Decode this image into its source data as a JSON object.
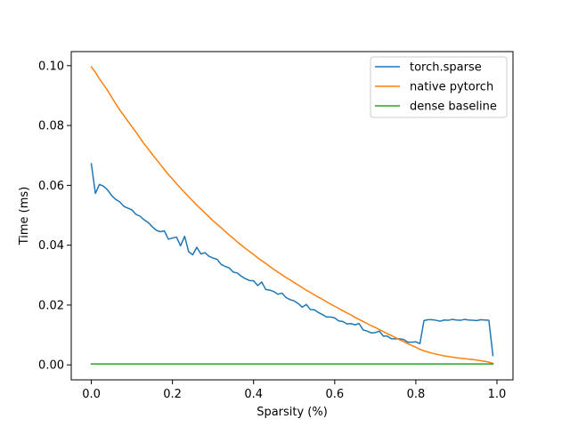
{
  "chart_data": {
    "type": "line",
    "title": "",
    "xlabel": "Sparsity (%)",
    "ylabel": "Time (ms)",
    "xlim": [
      -0.0495,
      1.0395
    ],
    "ylim": [
      -0.005,
      0.1047
    ],
    "xticks": [
      0.0,
      0.2,
      0.4,
      0.6,
      0.8,
      1.0
    ],
    "xtick_labels": [
      "0.0",
      "0.2",
      "0.4",
      "0.6",
      "0.8",
      "1.0"
    ],
    "yticks": [
      0.0,
      0.02,
      0.04,
      0.06,
      0.08,
      0.1
    ],
    "ytick_labels": [
      "0.00",
      "0.02",
      "0.04",
      "0.06",
      "0.08",
      "0.10"
    ],
    "grid": false,
    "legend_position": "upper right",
    "series": [
      {
        "name": "torch.sparse",
        "color": "#1f77b4",
        "x": [
          0.0,
          0.01,
          0.02,
          0.03,
          0.04,
          0.05,
          0.06,
          0.07,
          0.08,
          0.09,
          0.1,
          0.11,
          0.12,
          0.13,
          0.14,
          0.15,
          0.16,
          0.17,
          0.18,
          0.19,
          0.2,
          0.21,
          0.22,
          0.23,
          0.24,
          0.25,
          0.26,
          0.27,
          0.28,
          0.29,
          0.3,
          0.31,
          0.32,
          0.33,
          0.34,
          0.35,
          0.36,
          0.37,
          0.38,
          0.39,
          0.4,
          0.41,
          0.42,
          0.43,
          0.44,
          0.45,
          0.46,
          0.47,
          0.48,
          0.49,
          0.5,
          0.51,
          0.52,
          0.53,
          0.54,
          0.55,
          0.56,
          0.57,
          0.58,
          0.59,
          0.6,
          0.61,
          0.62,
          0.63,
          0.64,
          0.65,
          0.66,
          0.67,
          0.68,
          0.69,
          0.7,
          0.71,
          0.72,
          0.73,
          0.74,
          0.75,
          0.76,
          0.77,
          0.78,
          0.79,
          0.8,
          0.81,
          0.82,
          0.83,
          0.84,
          0.85,
          0.86,
          0.87,
          0.88,
          0.89,
          0.9,
          0.91,
          0.92,
          0.93,
          0.94,
          0.95,
          0.96,
          0.97,
          0.98,
          0.99
        ],
        "y": [
          0.0672,
          0.0573,
          0.0603,
          0.0597,
          0.0585,
          0.0566,
          0.0553,
          0.0545,
          0.053,
          0.0524,
          0.0518,
          0.0503,
          0.0497,
          0.0485,
          0.0476,
          0.0462,
          0.045,
          0.0445,
          0.0448,
          0.042,
          0.0424,
          0.0427,
          0.0398,
          0.043,
          0.0378,
          0.0368,
          0.0393,
          0.0371,
          0.0375,
          0.0363,
          0.0357,
          0.0353,
          0.0336,
          0.0329,
          0.0324,
          0.031,
          0.0307,
          0.0296,
          0.0288,
          0.0282,
          0.0281,
          0.0265,
          0.0277,
          0.0252,
          0.025,
          0.0245,
          0.0236,
          0.024,
          0.0225,
          0.0218,
          0.0214,
          0.0205,
          0.0193,
          0.0202,
          0.0185,
          0.0184,
          0.0175,
          0.0168,
          0.016,
          0.016,
          0.0157,
          0.0147,
          0.0145,
          0.0137,
          0.0138,
          0.0134,
          0.0138,
          0.0117,
          0.0113,
          0.0107,
          0.0108,
          0.0113,
          0.0096,
          0.0096,
          0.0087,
          0.0087,
          0.0087,
          0.0085,
          0.0076,
          0.0076,
          0.0077,
          0.0071,
          0.0148,
          0.0151,
          0.0151,
          0.0149,
          0.0146,
          0.015,
          0.0149,
          0.0152,
          0.015,
          0.0149,
          0.0152,
          0.015,
          0.0149,
          0.0148,
          0.0151,
          0.015,
          0.0149,
          0.0031
        ]
      },
      {
        "name": "native pytorch",
        "color": "#ff7f0e",
        "x": [
          0.0,
          0.01,
          0.02,
          0.03,
          0.04,
          0.05,
          0.06,
          0.07,
          0.08,
          0.09,
          0.1,
          0.11,
          0.12,
          0.13,
          0.14,
          0.15,
          0.16,
          0.17,
          0.18,
          0.19,
          0.2,
          0.21,
          0.22,
          0.23,
          0.24,
          0.25,
          0.26,
          0.27,
          0.28,
          0.29,
          0.3,
          0.31,
          0.32,
          0.33,
          0.34,
          0.35,
          0.36,
          0.37,
          0.38,
          0.39,
          0.4,
          0.41,
          0.42,
          0.43,
          0.44,
          0.45,
          0.46,
          0.47,
          0.48,
          0.49,
          0.5,
          0.51,
          0.52,
          0.53,
          0.54,
          0.55,
          0.56,
          0.57,
          0.58,
          0.59,
          0.6,
          0.61,
          0.62,
          0.63,
          0.64,
          0.65,
          0.66,
          0.67,
          0.68,
          0.69,
          0.7,
          0.71,
          0.72,
          0.73,
          0.74,
          0.75,
          0.76,
          0.77,
          0.78,
          0.79,
          0.8,
          0.81,
          0.82,
          0.83,
          0.84,
          0.85,
          0.86,
          0.87,
          0.88,
          0.89,
          0.9,
          0.91,
          0.92,
          0.93,
          0.94,
          0.95,
          0.96,
          0.97,
          0.98,
          0.99
        ],
        "y": [
          0.0996,
          0.0978,
          0.0956,
          0.0937,
          0.0917,
          0.0895,
          0.0873,
          0.0852,
          0.0834,
          0.0815,
          0.0796,
          0.0778,
          0.0758,
          0.0739,
          0.0722,
          0.0704,
          0.0687,
          0.067,
          0.0653,
          0.0636,
          0.0621,
          0.0606,
          0.0591,
          0.0576,
          0.0562,
          0.0548,
          0.0534,
          0.0521,
          0.0508,
          0.0495,
          0.0482,
          0.047,
          0.0458,
          0.0446,
          0.0434,
          0.0423,
          0.0411,
          0.04,
          0.0389,
          0.0379,
          0.0369,
          0.0358,
          0.0348,
          0.0339,
          0.0329,
          0.0319,
          0.031,
          0.0301,
          0.0292,
          0.0284,
          0.0275,
          0.0267,
          0.0258,
          0.025,
          0.0242,
          0.0234,
          0.0226,
          0.0219,
          0.0211,
          0.0203,
          0.0196,
          0.0189,
          0.0181,
          0.0174,
          0.0167,
          0.0159,
          0.0152,
          0.0145,
          0.0138,
          0.0131,
          0.0125,
          0.0118,
          0.0111,
          0.0104,
          0.0098,
          0.0091,
          0.0084,
          0.0078,
          0.0071,
          0.0065,
          0.0059,
          0.0052,
          0.0047,
          0.0043,
          0.0039,
          0.0036,
          0.0033,
          0.003,
          0.0028,
          0.0026,
          0.0024,
          0.0022,
          0.0021,
          0.0019,
          0.0018,
          0.0016,
          0.0014,
          0.0012,
          0.0009,
          0.0005
        ]
      },
      {
        "name": "dense baseline",
        "color": "#2ca02c",
        "x": [
          0.0,
          0.99
        ],
        "y": [
          0.0003,
          0.0003
        ]
      }
    ]
  }
}
